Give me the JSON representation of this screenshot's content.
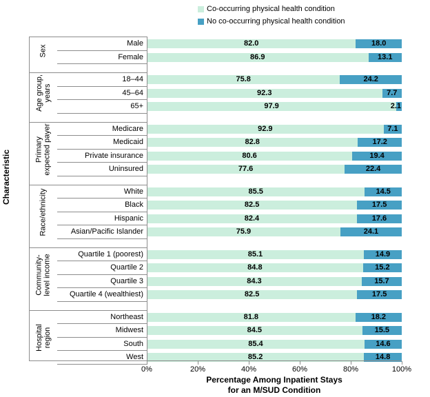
{
  "legend": {
    "items": [
      {
        "label": "Co-occurring physical health condition",
        "color": "#cbeedd"
      },
      {
        "label": "No co-occurring physical health condition",
        "color": "#47a0c4"
      }
    ]
  },
  "y_axis_title": "Characteristic",
  "x_axis_title": {
    "line1": "Percentage Among Inpatient Stays",
    "line2": "for an M/SUD Condition"
  },
  "chart_data": {
    "type": "bar",
    "orientation": "horizontal",
    "stacked": true,
    "xlim": [
      0,
      100
    ],
    "x_ticks": [
      "0%",
      "20%",
      "40%",
      "60%",
      "80%",
      "100%"
    ],
    "series": [
      "Co-occurring physical health condition",
      "No co-occurring physical health condition"
    ],
    "colors": {
      "co_occurring": "#cbeedd",
      "no_co_occurring": "#47a0c4"
    },
    "value_format_decimals": 1,
    "groups": [
      {
        "label": "Sex",
        "categories": [
          {
            "name": "Male",
            "values": [
              82.0,
              18.0
            ]
          },
          {
            "name": "Female",
            "values": [
              86.9,
              13.1
            ]
          }
        ]
      },
      {
        "label": "Age group,\nyears",
        "categories": [
          {
            "name": "18–44",
            "values": [
              75.8,
              24.2
            ]
          },
          {
            "name": "45–64",
            "values": [
              92.3,
              7.7
            ]
          },
          {
            "name": "65+",
            "values": [
              97.9,
              2.1
            ]
          }
        ]
      },
      {
        "label": "Primary\nexpected payer",
        "categories": [
          {
            "name": "Medicare",
            "values": [
              92.9,
              7.1
            ]
          },
          {
            "name": "Medicaid",
            "values": [
              82.8,
              17.2
            ]
          },
          {
            "name": "Private insurance",
            "values": [
              80.6,
              19.4
            ]
          },
          {
            "name": "Uninsured",
            "values": [
              77.6,
              22.4
            ]
          }
        ]
      },
      {
        "label": "Race/ethnicity",
        "categories": [
          {
            "name": "White",
            "values": [
              85.5,
              14.5
            ]
          },
          {
            "name": "Black",
            "values": [
              82.5,
              17.5
            ]
          },
          {
            "name": "Hispanic",
            "values": [
              82.4,
              17.6
            ]
          },
          {
            "name": "Asian/Pacific Islander",
            "values": [
              75.9,
              24.1
            ]
          }
        ]
      },
      {
        "label": "Community-\nlevel income",
        "categories": [
          {
            "name": "Quartile 1 (poorest)",
            "values": [
              85.1,
              14.9
            ]
          },
          {
            "name": "Quartile 2",
            "values": [
              84.8,
              15.2
            ]
          },
          {
            "name": "Quartile 3",
            "values": [
              84.3,
              15.7
            ]
          },
          {
            "name": "Quartile 4 (wealthiest)",
            "values": [
              82.5,
              17.5
            ]
          }
        ]
      },
      {
        "label": "Hospital\nregion",
        "categories": [
          {
            "name": "Northeast",
            "values": [
              81.8,
              18.2
            ]
          },
          {
            "name": "Midwest",
            "values": [
              84.5,
              15.5
            ]
          },
          {
            "name": "South",
            "values": [
              85.4,
              14.6
            ]
          },
          {
            "name": "West",
            "values": [
              85.2,
              14.8
            ]
          }
        ]
      }
    ]
  }
}
